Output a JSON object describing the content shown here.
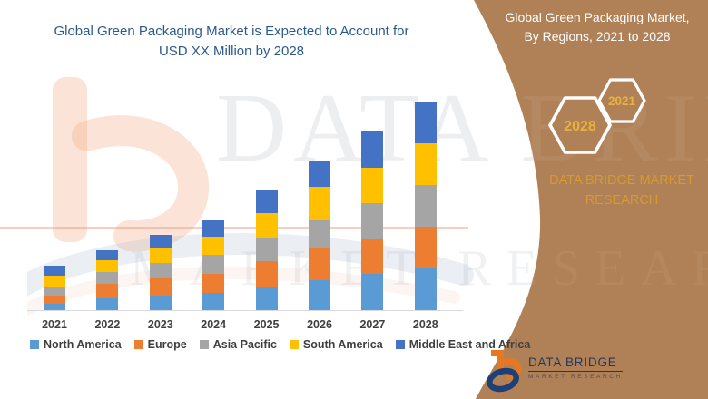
{
  "chart": {
    "title_line1": "Global Green Packaging Market is Expected to Account for",
    "title_line2": "USD XX Million by 2028"
  },
  "chart_data": {
    "type": "bar",
    "stacked": true,
    "title": "Global Green Packaging Market is Expected to Account for USD XX Million by 2028",
    "xlabel": "",
    "ylabel": "",
    "categories": [
      "2021",
      "2022",
      "2023",
      "2024",
      "2025",
      "2026",
      "2027",
      "2028"
    ],
    "series": [
      {
        "name": "North America",
        "color": "#5B9BD5",
        "values": [
          7,
          13,
          16,
          19,
          26,
          33,
          40,
          46
        ]
      },
      {
        "name": "Europe",
        "color": "#ED7D31",
        "values": [
          9,
          16,
          19,
          21,
          28,
          36,
          38,
          46
        ]
      },
      {
        "name": "Asia Pacific",
        "color": "#A5A5A5",
        "values": [
          10,
          13,
          17,
          21,
          26,
          30,
          40,
          46
        ]
      },
      {
        "name": "South America",
        "color": "#FFC000",
        "values": [
          12,
          13,
          16,
          20,
          27,
          37,
          39,
          46
        ]
      },
      {
        "name": "Middle East and Africa",
        "color": "#4472C4",
        "values": [
          11,
          11,
          15,
          18,
          25,
          29,
          40,
          46
        ]
      }
    ],
    "stacked_totals": [
      49,
      66,
      83,
      99,
      132,
      165,
      197,
      230
    ],
    "value_units": "relative units (actual values shown as USD XX Million)",
    "ylim": [
      0,
      242
    ],
    "grid": false,
    "legend_position": "bottom"
  },
  "sidebar": {
    "title_line1": "Global Green Packaging Market,",
    "title_line2": "By Regions, 2021 to 2028",
    "hexagon_back_year": "2021",
    "hexagon_front_year": "2028",
    "brand_text": "DATA BRIDGE MARKET RESEARCH"
  },
  "logo": {
    "name": "DATA BRIDGE",
    "tagline": "MARKET RESEARCH"
  },
  "watermark": {
    "brand": "DATA BRIDGE",
    "tagline": "MARKET RESEARCH"
  },
  "colors": {
    "background": "#FFFFFF",
    "panel_brown": "#B08157",
    "title_blue": "#2B5A8C",
    "axis_text": "#3F3F3F",
    "hexagon_gold": "#E8B33C",
    "brand_gold": "#D79A2F",
    "logo_navy": "#1F3864",
    "logo_orange": "#E87722",
    "axis_line": "#D9D9D9"
  }
}
